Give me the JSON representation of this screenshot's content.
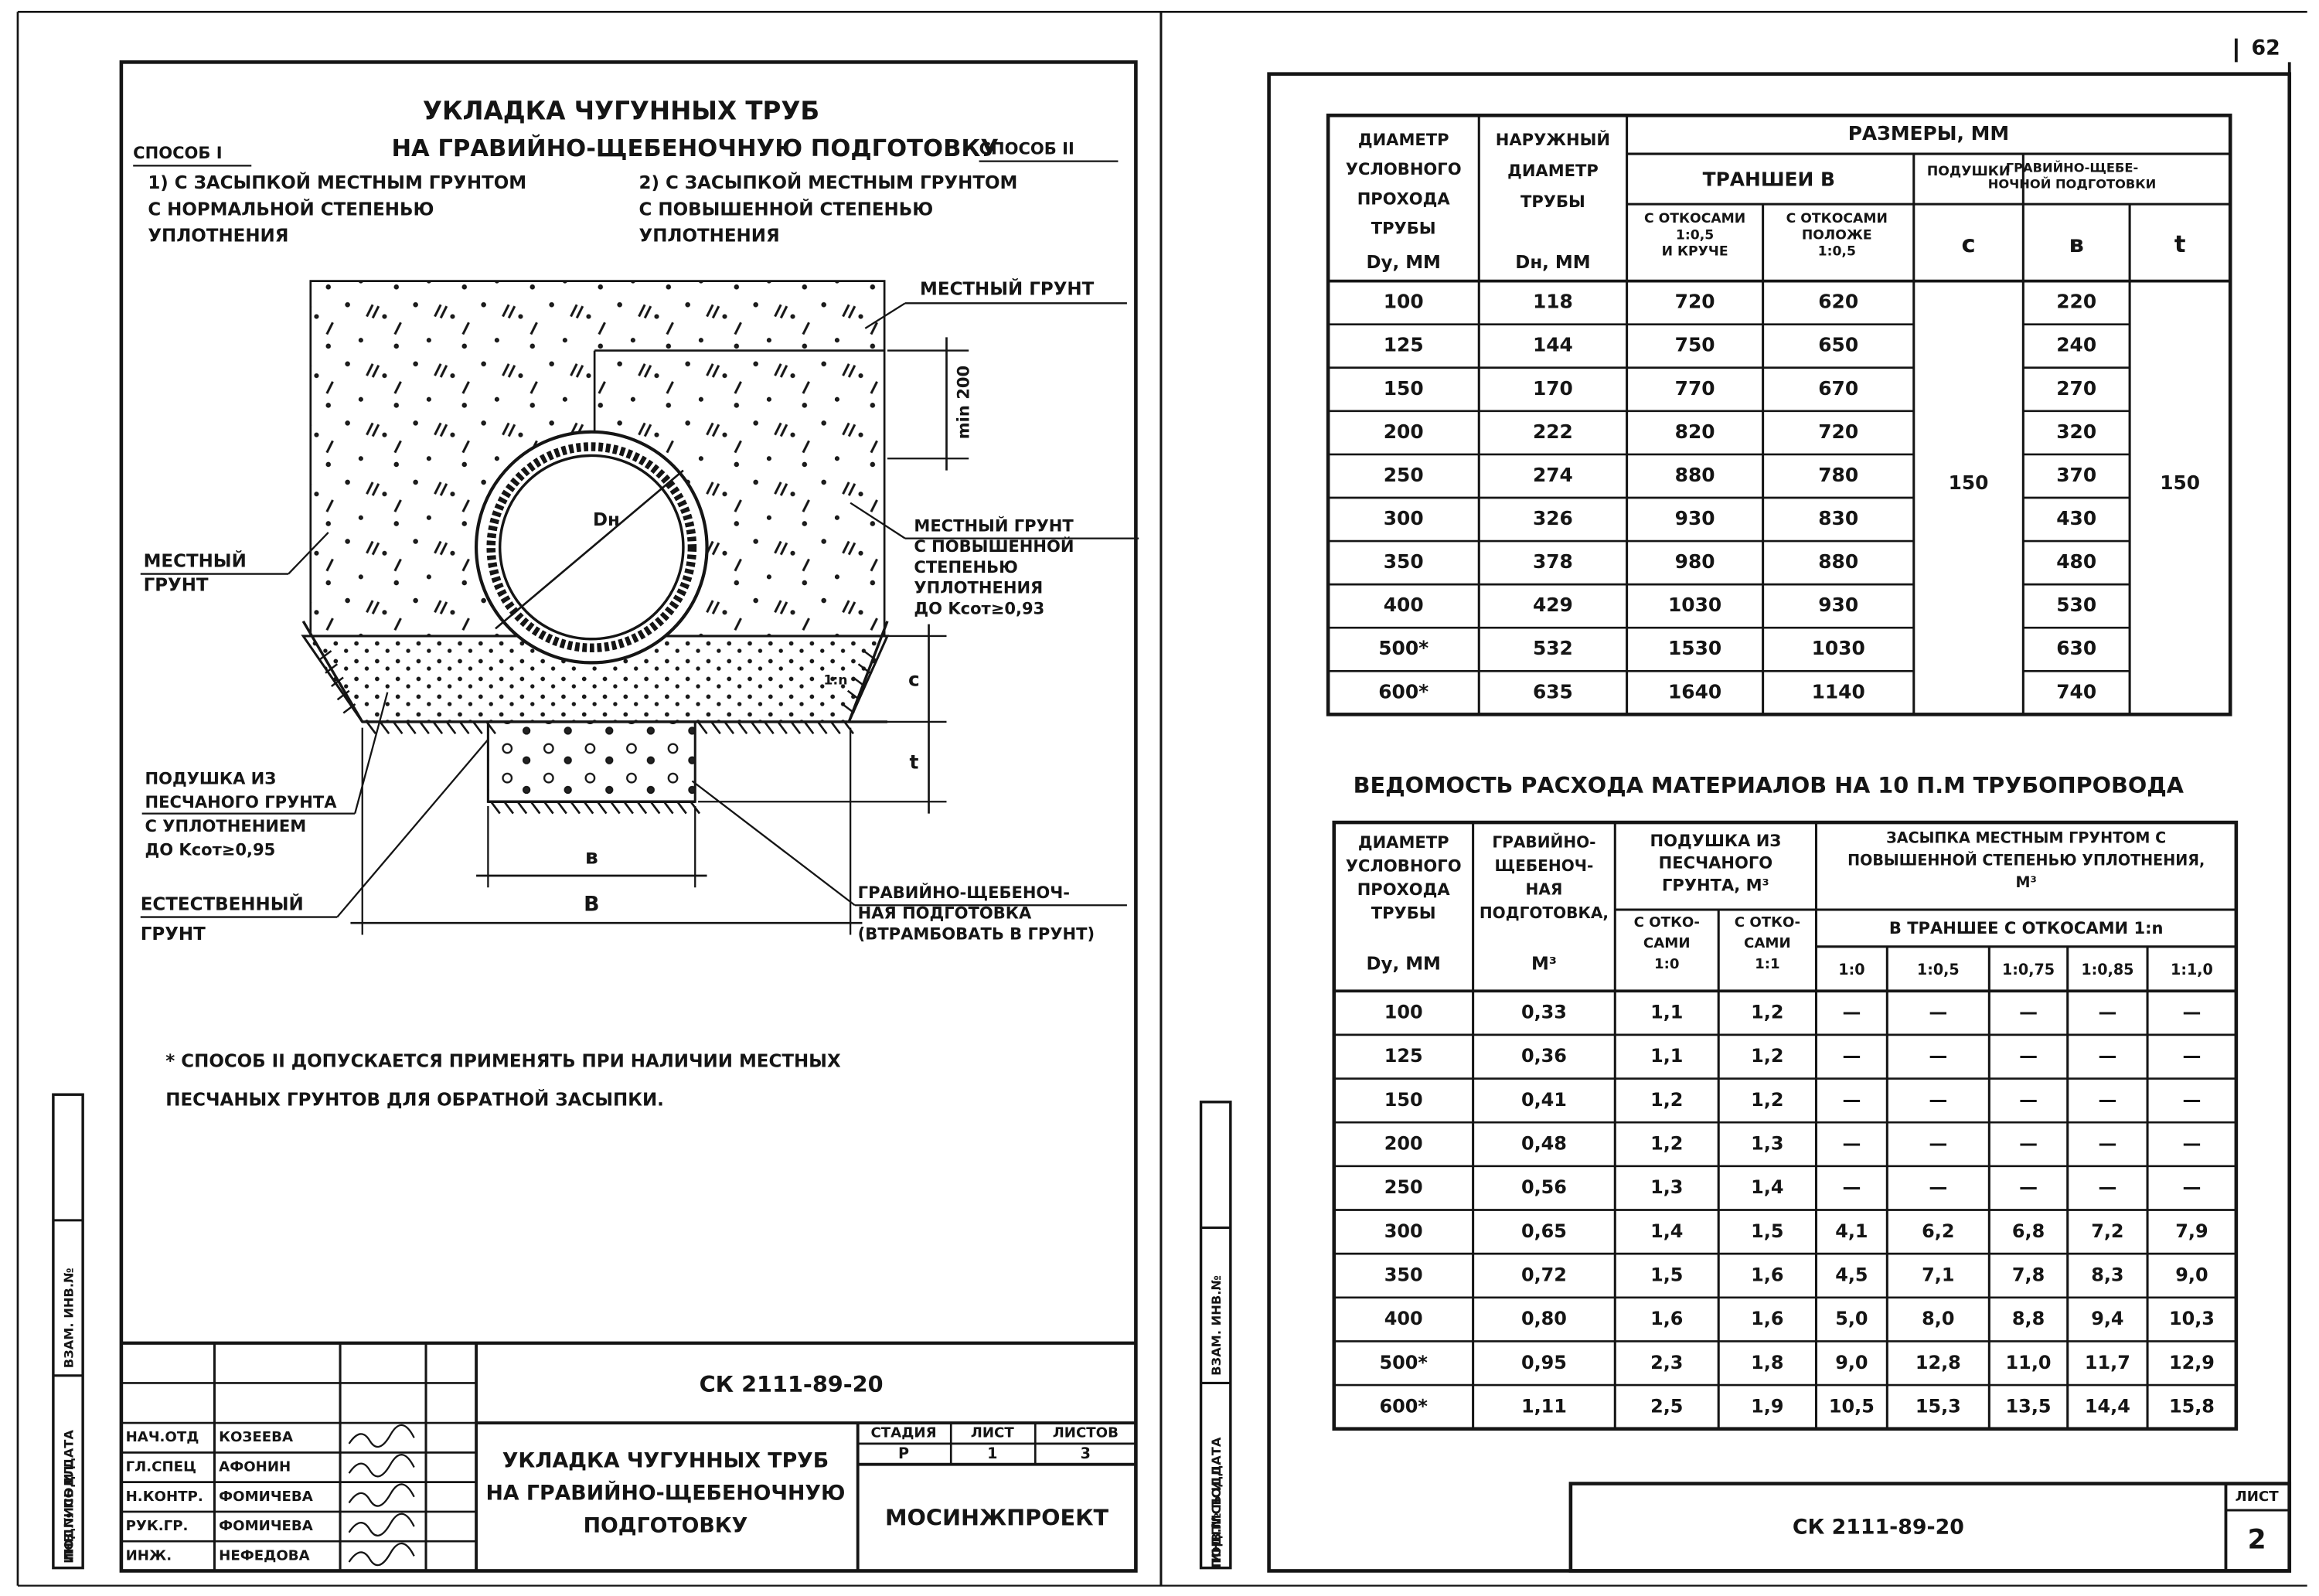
{
  "page_number": "62",
  "left": {
    "title": [
      "УКЛАДКА ЧУГУННЫХ ТРУБ",
      "НА ГРАВИЙНО-ЩЕБЕНОЧНУЮ ПОДГОТОВКУ"
    ],
    "method_1": "СПОСОБ I",
    "method_2": "СПОСОБ II",
    "option_1": [
      "1) С ЗАСЫПКОЙ МЕСТНЫМ ГРУНТОМ",
      "С НОРМАЛЬНОЙ СТЕПЕНЬЮ",
      "УПЛОТНЕНИЯ"
    ],
    "option_2": [
      "2) С ЗАСЫПКОЙ МЕСТНЫМ ГРУНТОМ",
      "С ПОВЫШЕННОЙ СТЕПЕНЬЮ",
      "УПЛОТНЕНИЯ"
    ],
    "drawing": {
      "local_soil_top": "МЕСТНЫЙ ГРУНТ",
      "min_cover": "min 200",
      "pipe_diameter": "Dн",
      "compacted_soil": [
        "МЕСТНЫЙ ГРУНТ",
        "С ПОВЫШЕННОЙ",
        "СТЕПЕНЬЮ",
        "УПЛОТНЕНИЯ",
        "ДО Kсот≥0,93"
      ],
      "local_soil_left": [
        "МЕСТНЫЙ",
        "ГРУНТ"
      ],
      "slope": "1:n",
      "c": "c",
      "t": "t",
      "sand_bed": [
        "ПОДУШКА ИЗ",
        "ПЕСЧАНОГО ГРУНТА",
        "С УПЛОТНЕНИЕМ",
        "ДО Kсот≥0,95"
      ],
      "natural_soil": [
        "ЕСТЕСТВЕННЫЙ",
        "ГРУНТ"
      ],
      "b": "в",
      "B": "В",
      "gravel": [
        "ГРАВИЙНО-ЩЕБЕНОЧ-",
        "НАЯ ПОДГОТОВКА",
        "(ВТРАМБОВАТЬ В ГРУНТ)"
      ]
    },
    "note": [
      "* СПОСОБ II ДОПУСКАЕТСЯ ПРИМЕНЯТЬ ПРИ НАЛИЧИИ МЕСТНЫХ",
      "ПЕСЧАНЫХ ГРУНТОВ ДЛЯ ОБРАТНОЙ ЗАСЫПКИ."
    ],
    "side_stamp": [
      "ИНВ.№ ПОДЛ.",
      "ПОДПИСЬ И ДАТА",
      "ВЗАМ. ИНВ.№"
    ],
    "title_block": {
      "code": "СК 2111-89-20",
      "staff": [
        {
          "role": "НАЧ.ОТД",
          "name": "КОЗЕЕВА"
        },
        {
          "role": "ГЛ.СПЕЦ",
          "name": "АФОНИН"
        },
        {
          "role": "Н.КОНТР.",
          "name": "ФОМИЧЕВА"
        },
        {
          "role": "РУК.ГР.",
          "name": "ФОМИЧЕВА"
        },
        {
          "role": "ИНЖ.",
          "name": "НЕФЕДОВА"
        }
      ],
      "sheet_title": [
        "УКЛАДКА ЧУГУННЫХ ТРУБ",
        "НА ГРАВИЙНО-ЩЕБЕНОЧНУЮ",
        "ПОДГОТОВКУ"
      ],
      "stage_header": "СТАДИЯ",
      "sheet_header": "ЛИСТ",
      "sheets_header": "ЛИСТОВ",
      "stage": "Р",
      "sheet": "1",
      "sheets": "3",
      "organization": "МОСИНЖПРОЕКТ"
    }
  },
  "right": {
    "side_stamp": [
      "ИНВ.№ ПОДЛ.",
      "ПОДПИСЬ И ДАТА",
      "ВЗАМ. ИНВ.№"
    ],
    "table1": {
      "header": {
        "dy": [
          "ДИАМЕТР",
          "УСЛОВНОГО",
          "ПРОХОДА",
          "ТРУБЫ"
        ],
        "dy_unit": "Dу, ММ",
        "dn": [
          "НАРУЖНЫЙ",
          "ДИАМЕТР",
          "ТРУБЫ"
        ],
        "dn_unit": "Dн, ММ",
        "sizes": "РАЗМЕРЫ, ММ",
        "trench": "ТРАНШЕИ В",
        "bed": "ПОДУШКИ",
        "gravel": [
          "ГРАВИЙНО-ЩЕБЕ-",
          "НОЧНОЙ ПОДГОТОВКИ"
        ],
        "steep": [
          "С ОТКОСАМИ",
          "1:0,5",
          "И КРУЧЕ"
        ],
        "gentle": [
          "С ОТКОСАМИ",
          "ПОЛОЖЕ",
          "1:0,5"
        ],
        "c": "c",
        "b": "в",
        "t": "t"
      },
      "rows": [
        [
          "100",
          "118",
          "720",
          "620",
          "220"
        ],
        [
          "125",
          "144",
          "750",
          "650",
          "240"
        ],
        [
          "150",
          "170",
          "770",
          "670",
          "270"
        ],
        [
          "200",
          "222",
          "820",
          "720",
          "320"
        ],
        [
          "250",
          "274",
          "880",
          "780",
          "370"
        ],
        [
          "300",
          "326",
          "930",
          "830",
          "430"
        ],
        [
          "350",
          "378",
          "980",
          "880",
          "480"
        ],
        [
          "400",
          "429",
          "1030",
          "930",
          "530"
        ],
        [
          "500*",
          "532",
          "1530",
          "1030",
          "630"
        ],
        [
          "600*",
          "635",
          "1640",
          "1140",
          "740"
        ]
      ],
      "c": "150",
      "t": "150"
    },
    "table2": {
      "title": "ВЕДОМОСТЬ РАСХОДА МАТЕРИАЛОВ НА 10 П.М ТРУБОПРОВОДА",
      "header": {
        "dy": [
          "ДИАМЕТР",
          "УСЛОВНОГО",
          "ПРОХОДА",
          "ТРУБЫ"
        ],
        "dy_unit": "Dу, ММ",
        "gravel": [
          "ГРАВИЙНО-",
          "ЩЕБЕНОЧ-",
          "НАЯ",
          "ПОДГОТОВКА,"
        ],
        "gravel_unit": "М³",
        "bed": [
          "ПОДУШКА ИЗ",
          "ПЕСЧАНОГО",
          "ГРУНТА, М³"
        ],
        "backfill": [
          "ЗАСЫПКА МЕСТНЫМ ГРУНТОМ С",
          "ПОВЫШЕННОЙ СТЕПЕНЬЮ УПЛОТНЕНИЯ,",
          "М³"
        ],
        "slope_0": [
          "С ОТКО-",
          "САМИ",
          "1:0"
        ],
        "slope_1": [
          "С ОТКО-",
          "САМИ",
          "1:1"
        ],
        "trench_slopes": "В ТРАНШЕЕ С ОТКОСАМИ 1:n",
        "ratios": [
          "1:0",
          "1:0,5",
          "1:0,75",
          "1:0,85",
          "1:1,0"
        ]
      },
      "rows": [
        [
          "100",
          "0,33",
          "1,1",
          "1,2",
          "—",
          "—",
          "—",
          "—",
          "—"
        ],
        [
          "125",
          "0,36",
          "1,1",
          "1,2",
          "—",
          "—",
          "—",
          "—",
          "—"
        ],
        [
          "150",
          "0,41",
          "1,2",
          "1,2",
          "—",
          "—",
          "—",
          "—",
          "—"
        ],
        [
          "200",
          "0,48",
          "1,2",
          "1,3",
          "—",
          "—",
          "—",
          "—",
          "—"
        ],
        [
          "250",
          "0,56",
          "1,3",
          "1,4",
          "—",
          "—",
          "—",
          "—",
          "—"
        ],
        [
          "300",
          "0,65",
          "1,4",
          "1,5",
          "4,1",
          "6,2",
          "6,8",
          "7,2",
          "7,9"
        ],
        [
          "350",
          "0,72",
          "1,5",
          "1,6",
          "4,5",
          "7,1",
          "7,8",
          "8,3",
          "9,0"
        ],
        [
          "400",
          "0,80",
          "1,6",
          "1,6",
          "5,0",
          "8,0",
          "8,8",
          "9,4",
          "10,3"
        ],
        [
          "500*",
          "0,95",
          "2,3",
          "1,8",
          "9,0",
          "12,8",
          "11,0",
          "11,7",
          "12,9"
        ],
        [
          "600*",
          "1,11",
          "2,5",
          "1,9",
          "10,5",
          "15,3",
          "13,5",
          "14,4",
          "15,8"
        ]
      ]
    },
    "stamp": {
      "code": "СК 2111-89-20",
      "sheet_label": "ЛИСТ",
      "sheet": "2"
    }
  }
}
